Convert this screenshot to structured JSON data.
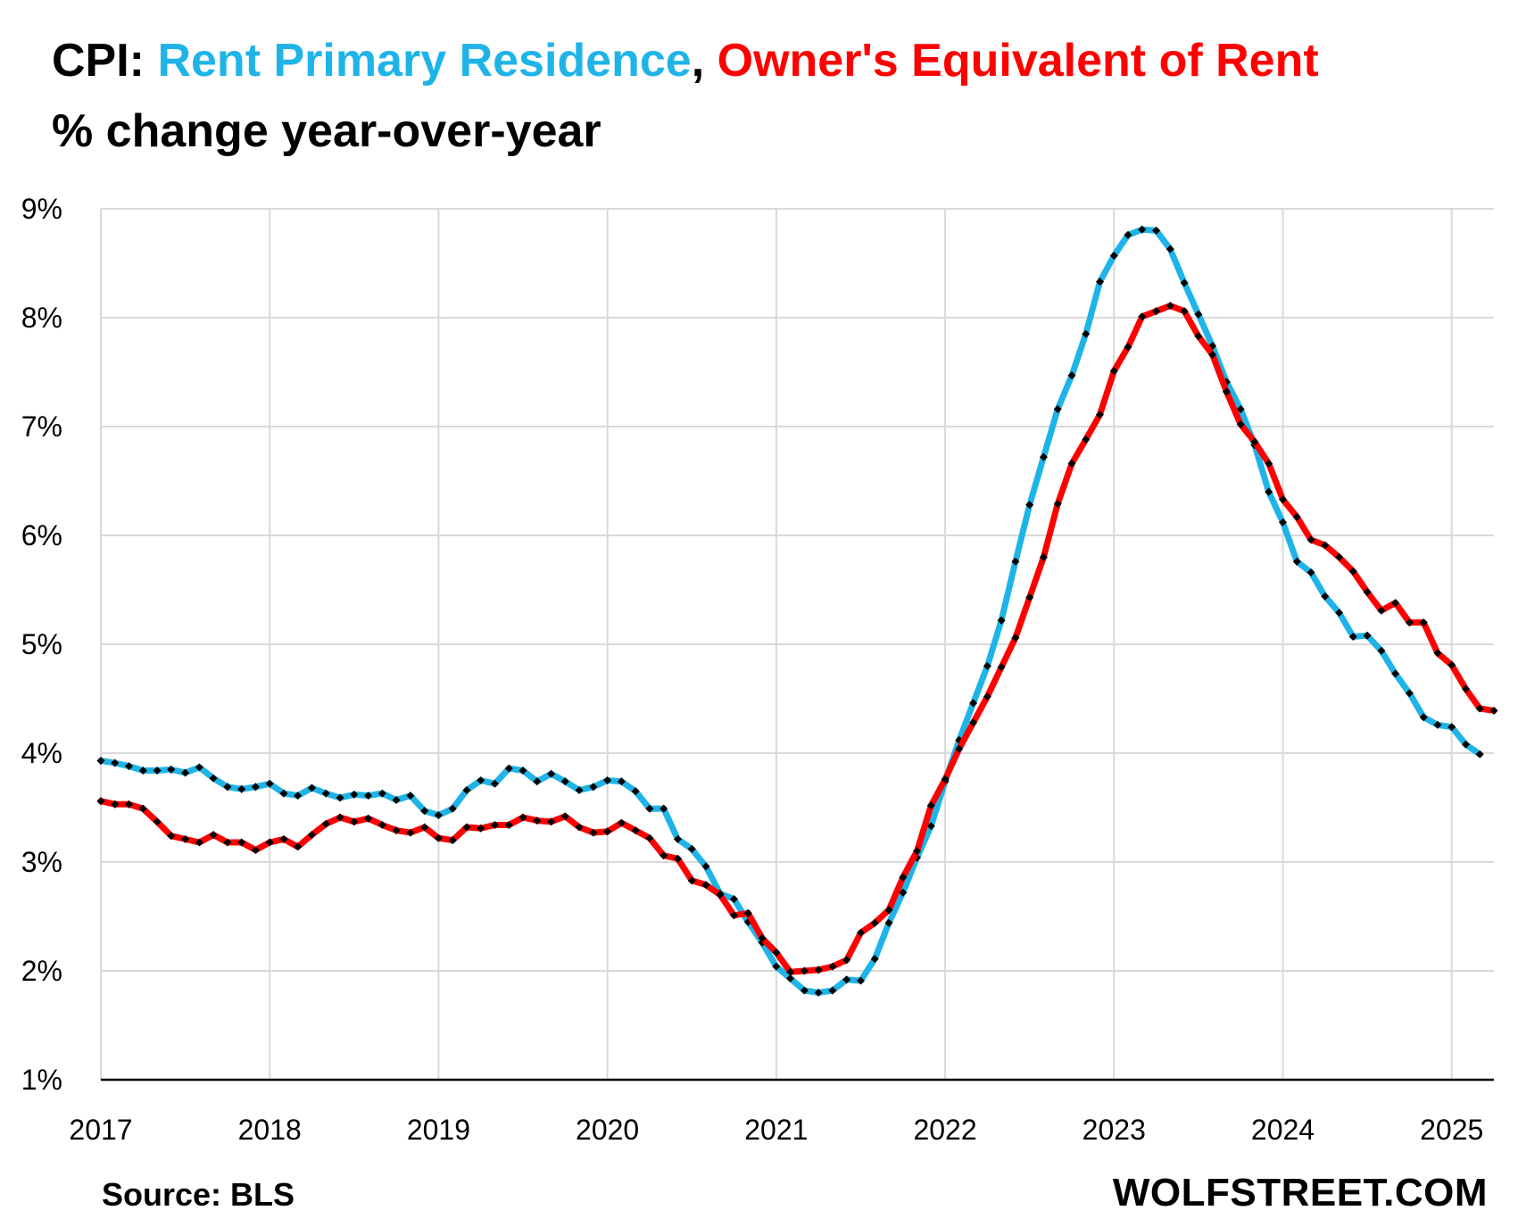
{
  "title": {
    "prefix": "CPI: ",
    "series1": "Rent Primary Residence",
    "separator": ", ",
    "series2": "Owner's Equivalent of Rent"
  },
  "subtitle": "% change year-over-year",
  "source": "Source: BLS",
  "brand": "WOLFSTREET.COM",
  "colors": {
    "rent": "#1fb4e8",
    "oer": "#ff0000",
    "marker": "#000000",
    "grid": "#d9d9d9"
  },
  "chart_data": {
    "type": "line",
    "title": "CPI: Rent Primary Residence, Owner's Equivalent of Rent",
    "ylabel": "% change year-over-year",
    "xlabel": "",
    "ylim": [
      1,
      9
    ],
    "xlim": [
      2017.0,
      2025.25
    ],
    "grid": true,
    "y_ticks": [
      "1%",
      "2%",
      "3%",
      "4%",
      "5%",
      "6%",
      "7%",
      "8%",
      "9%"
    ],
    "x_ticks": [
      "2017",
      "2018",
      "2019",
      "2020",
      "2021",
      "2022",
      "2023",
      "2024",
      "2025"
    ],
    "x_start": "2017-01",
    "frequency": "monthly",
    "series": [
      {
        "name": "Rent Primary Residence",
        "color": "#1fb4e8",
        "values": [
          3.93,
          3.91,
          3.88,
          3.84,
          3.84,
          3.85,
          3.82,
          3.87,
          3.77,
          3.69,
          3.67,
          3.69,
          3.72,
          3.63,
          3.61,
          3.68,
          3.63,
          3.59,
          3.62,
          3.61,
          3.63,
          3.57,
          3.61,
          3.47,
          3.43,
          3.49,
          3.66,
          3.75,
          3.72,
          3.86,
          3.84,
          3.74,
          3.81,
          3.74,
          3.66,
          3.69,
          3.75,
          3.74,
          3.65,
          3.49,
          3.49,
          3.21,
          3.12,
          2.96,
          2.71,
          2.66,
          2.45,
          2.26,
          2.04,
          1.93,
          1.82,
          1.8,
          1.82,
          1.92,
          1.91,
          2.11,
          2.44,
          2.72,
          3.04,
          3.33,
          3.74,
          4.12,
          4.46,
          4.8,
          5.22,
          5.76,
          6.28,
          6.72,
          7.16,
          7.47,
          7.85,
          8.33,
          8.57,
          8.76,
          8.81,
          8.8,
          8.63,
          8.32,
          8.03,
          7.74,
          7.41,
          7.16,
          6.83,
          6.4,
          6.12,
          5.76,
          5.66,
          5.44,
          5.29,
          5.07,
          5.08,
          4.94,
          4.73,
          4.55,
          4.33,
          4.26,
          4.24,
          4.08,
          3.99
        ]
      },
      {
        "name": "Owner's Equivalent of Rent",
        "color": "#ff0000",
        "values": [
          3.56,
          3.53,
          3.53,
          3.49,
          3.37,
          3.24,
          3.21,
          3.18,
          3.25,
          3.18,
          3.18,
          3.11,
          3.18,
          3.21,
          3.14,
          3.25,
          3.35,
          3.41,
          3.37,
          3.4,
          3.34,
          3.29,
          3.27,
          3.32,
          3.22,
          3.2,
          3.32,
          3.31,
          3.34,
          3.34,
          3.41,
          3.38,
          3.37,
          3.42,
          3.32,
          3.27,
          3.28,
          3.36,
          3.29,
          3.22,
          3.06,
          3.03,
          2.83,
          2.79,
          2.7,
          2.51,
          2.53,
          2.3,
          2.17,
          1.99,
          2.0,
          2.01,
          2.04,
          2.1,
          2.35,
          2.44,
          2.56,
          2.86,
          3.1,
          3.52,
          3.76,
          4.04,
          4.28,
          4.52,
          4.79,
          5.06,
          5.43,
          5.8,
          6.29,
          6.66,
          6.88,
          7.11,
          7.51,
          7.73,
          8.01,
          8.06,
          8.11,
          8.06,
          7.83,
          7.66,
          7.32,
          7.02,
          6.86,
          6.66,
          6.33,
          6.17,
          5.96,
          5.91,
          5.8,
          5.67,
          5.48,
          5.31,
          5.38,
          5.2,
          5.2,
          4.92,
          4.81,
          4.59,
          4.41,
          4.39
        ]
      }
    ]
  }
}
